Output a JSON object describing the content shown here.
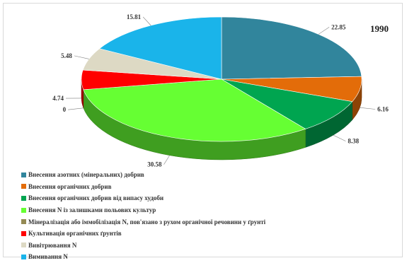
{
  "chart_data": {
    "type": "pie",
    "title": "1990",
    "start_angle_deg": -90,
    "direction": "clockwise",
    "depth": "3d",
    "slices": [
      {
        "name": "Внесення азотних (мінеральних) добрив",
        "value": 22.85,
        "label": "22.85",
        "color": "#31859c"
      },
      {
        "name": "Внесення органічних добрив",
        "value": 6.16,
        "label": "6.16",
        "color": "#e36c09"
      },
      {
        "name": "Внесення органічних добрив від випасу худоби",
        "value": 8.38,
        "label": "8.38",
        "color": "#00a550"
      },
      {
        "name": "Внесення N із залишками польових культур",
        "value": 30.58,
        "label": "30.58",
        "color": "#66ff33"
      },
      {
        "name": "Мінералізація або іммобілізація N, пов'язано з рухом органічної речовини у ґрунті",
        "value": 0,
        "label": "0",
        "color": "#948a54"
      },
      {
        "name": "Культивація органічних ґрунтів",
        "value": 4.74,
        "label": "4.74",
        "color": "#ff0000"
      },
      {
        "name": "Вивітрювання N",
        "value": 5.48,
        "label": "5.48",
        "color": "#ddd9c4"
      },
      {
        "name": "Вимивання N",
        "value": 15.81,
        "label": "15.81",
        "color": "#1ab4ea"
      }
    ],
    "legend_position": "bottom-left"
  }
}
